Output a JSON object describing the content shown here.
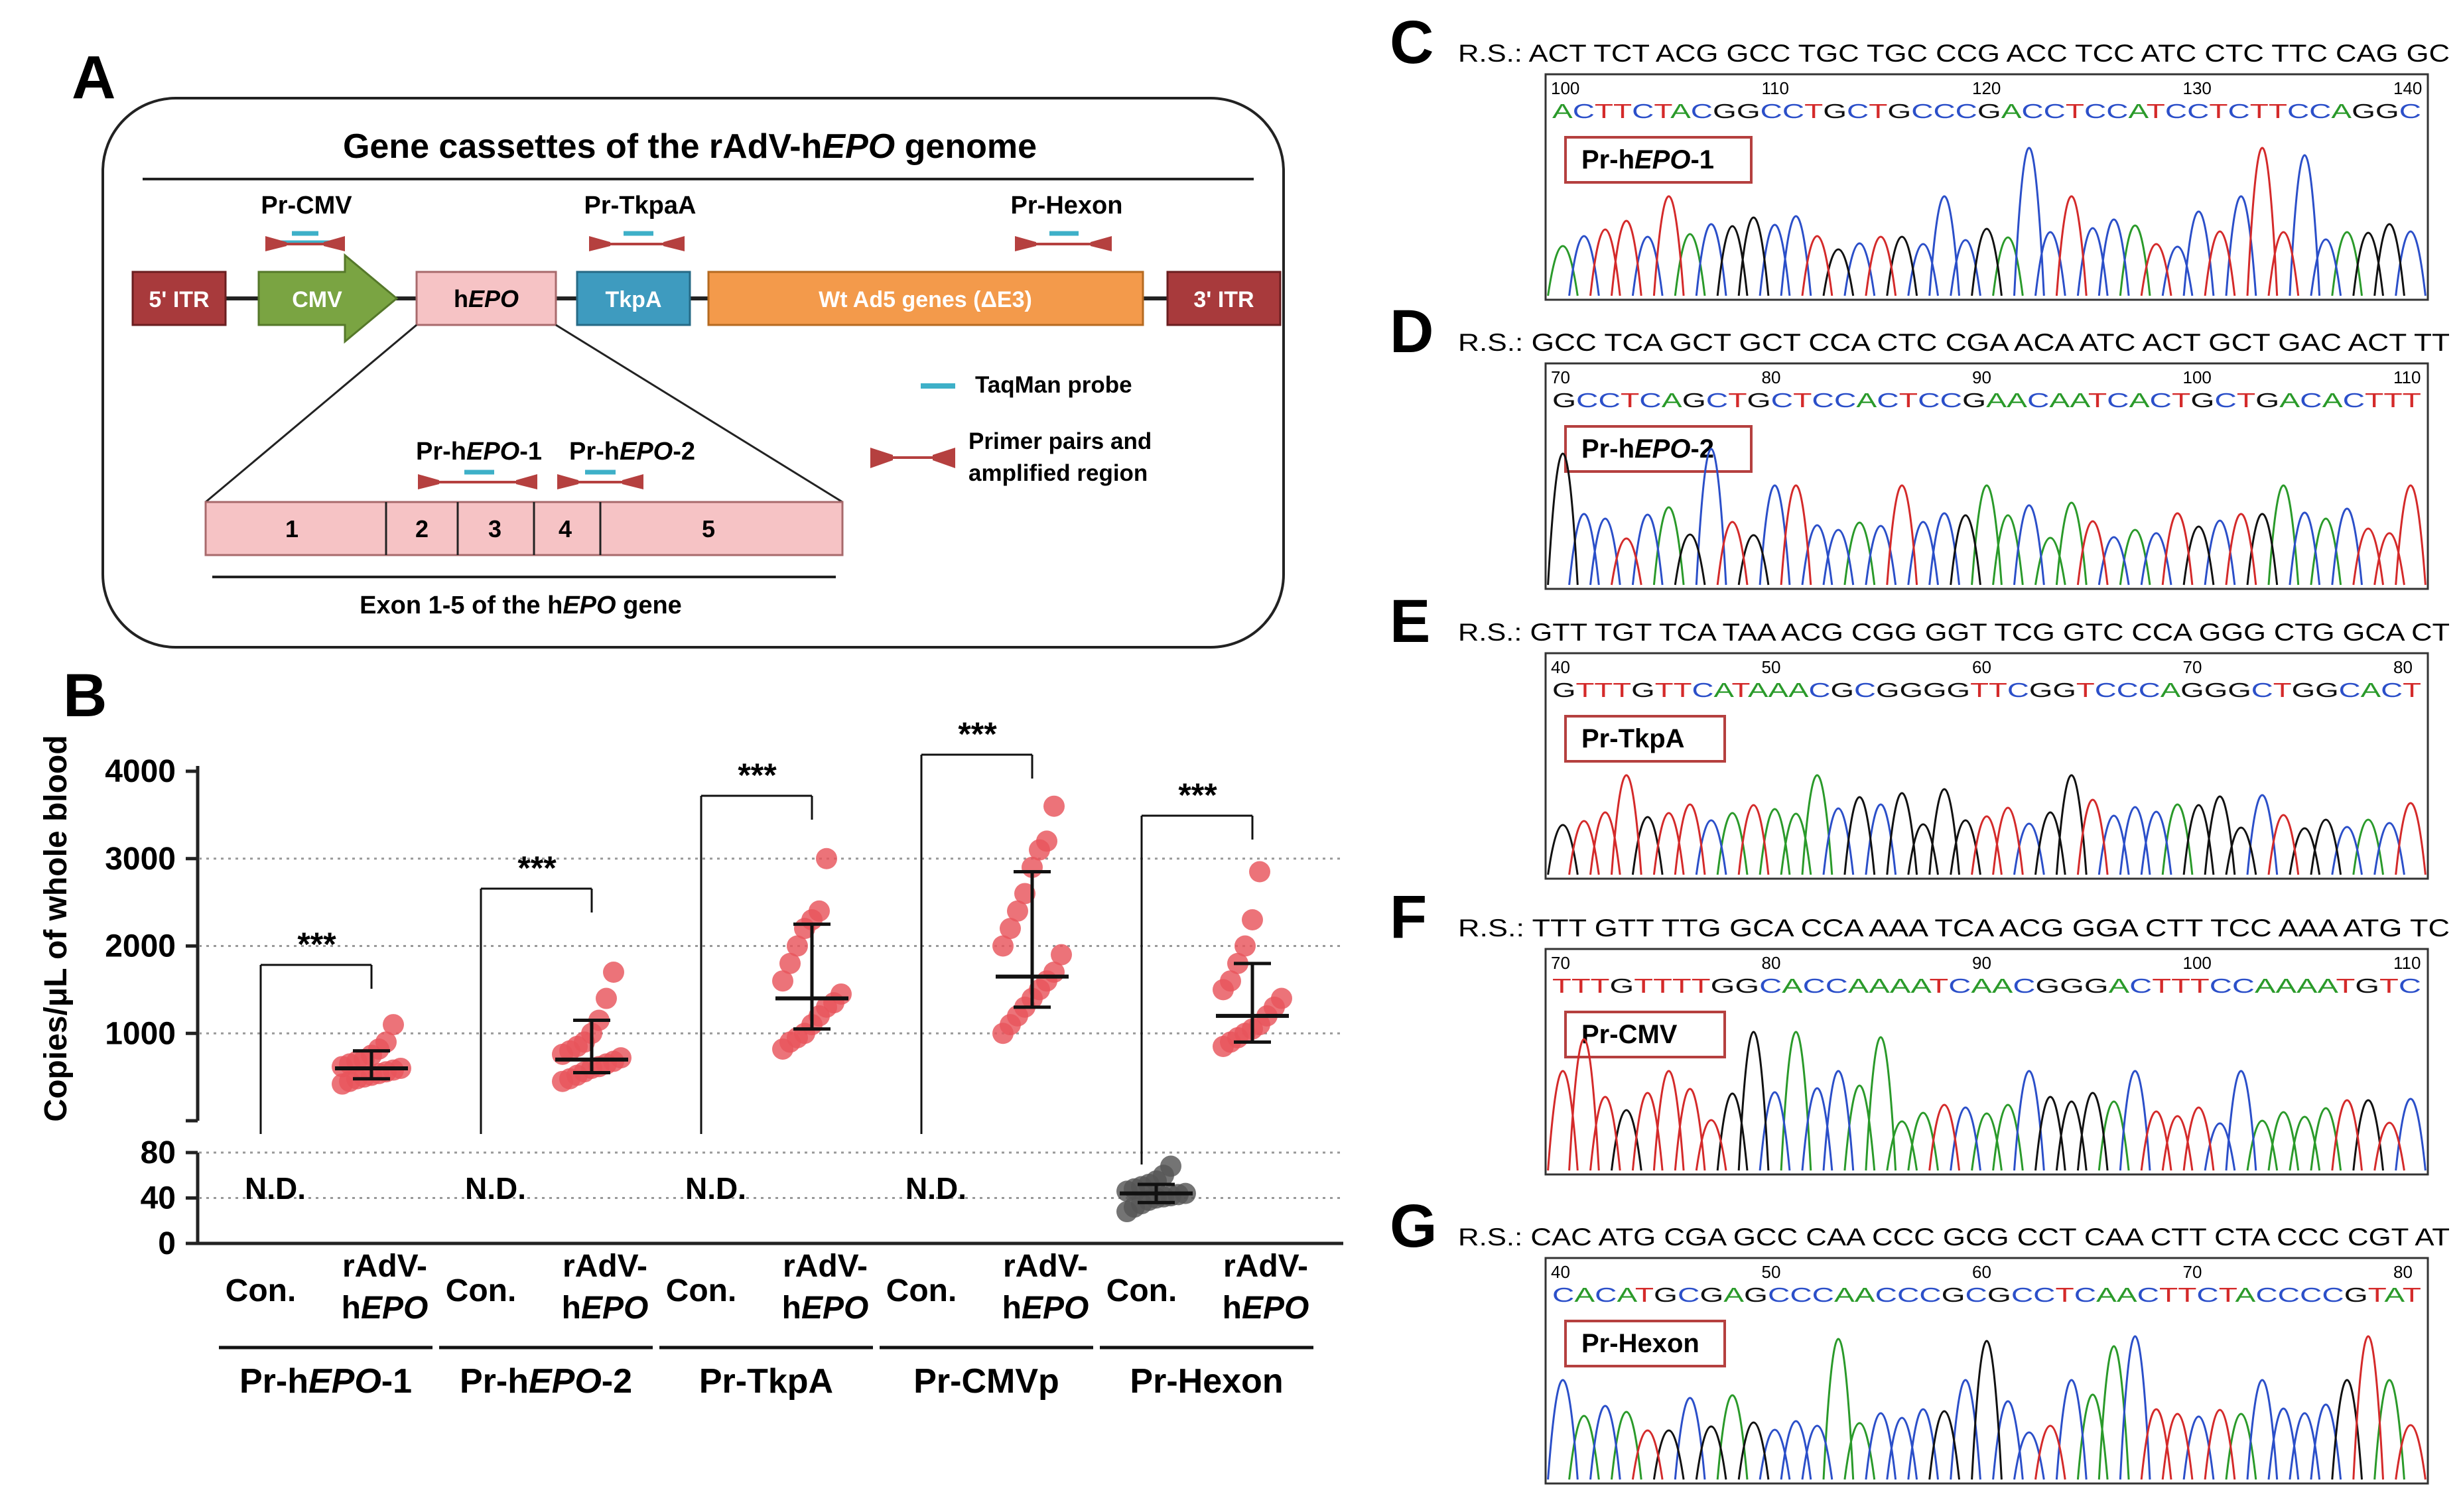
{
  "panel_a": {
    "letter": "A",
    "title_pre": "Gene cassettes of the rAdV-h",
    "title_ital": "EPO",
    "title_post": " genome",
    "primers": {
      "cmv": "Pr-CMV",
      "tkpa": "Pr-TkpaA",
      "hexon": "Pr-Hexon",
      "hepo1": "Pr-hEPO-1",
      "hepo2": "Pr-hEPO-2"
    },
    "boxes": {
      "itr5": "5' ITR",
      "cmv": "CMV",
      "hepo_pre": "h",
      "hepo_ital": "EPO",
      "tkpa": "TkpA",
      "wt": "Wt Ad5 genes (ΔE3)",
      "itr3": "3' ITR"
    },
    "legend": {
      "probe": "TaqMan probe",
      "primer_line1": "Primer pairs and",
      "primer_line2": "amplified region"
    },
    "exons": [
      "1",
      "2",
      "3",
      "4",
      "5"
    ],
    "exon_label_pre": "Exon 1-5 of the h",
    "exon_label_ital": "EPO",
    "exon_label_post": " gene"
  },
  "chart_data": {
    "type": "scatter",
    "panel": "B",
    "ylabel": "Copies/μL of whole blood",
    "y_axis_segments": [
      {
        "range": [
          0,
          80
        ],
        "ticks": [
          0,
          40,
          80
        ]
      },
      {
        "range": [
          0,
          4000
        ],
        "ticks": [
          1000,
          2000,
          3000,
          4000
        ]
      }
    ],
    "grid": "dotted",
    "groups": [
      {
        "name": "Pr-hEPO-1",
        "control": "N.D.",
        "rAdV_hEPO": {
          "mean": 600,
          "sd_low": 480,
          "sd_high": 800,
          "points": [
            420,
            450,
            480,
            500,
            520,
            540,
            560,
            580,
            600,
            620,
            650,
            680,
            700,
            750,
            820,
            900,
            1100
          ]
        },
        "significance": "***"
      },
      {
        "name": "Pr-hEPO-2",
        "control": "N.D.",
        "rAdV_hEPO": {
          "mean": 700,
          "sd_low": 550,
          "sd_high": 1150,
          "points": [
            450,
            480,
            520,
            560,
            600,
            620,
            650,
            680,
            720,
            760,
            800,
            850,
            900,
            1000,
            1150,
            1400,
            1700
          ]
        },
        "significance": "***"
      },
      {
        "name": "Pr-TkpA",
        "control": "N.D.",
        "rAdV_hEPO": {
          "mean": 1400,
          "sd_low": 1050,
          "sd_high": 2250,
          "points": [
            820,
            900,
            950,
            1000,
            1100,
            1200,
            1300,
            1350,
            1450,
            1600,
            1800,
            2000,
            2200,
            2300,
            2400,
            3000
          ]
        },
        "significance": "***"
      },
      {
        "name": "Pr-CMVp",
        "control": "N.D.",
        "rAdV_hEPO": {
          "mean": 1650,
          "sd_low": 1300,
          "sd_high": 2850,
          "points": [
            1000,
            1100,
            1200,
            1300,
            1400,
            1500,
            1600,
            1700,
            1900,
            2000,
            2200,
            2400,
            2600,
            2900,
            3100,
            3200,
            3600
          ]
        },
        "significance": "***"
      },
      {
        "name": "Pr-Hexon",
        "control": {
          "mean": 44,
          "sd_low": 36,
          "sd_high": 52,
          "points": [
            28,
            32,
            35,
            38,
            40,
            41,
            42,
            43,
            44,
            46,
            48,
            50,
            52,
            55,
            60,
            68
          ]
        },
        "rAdV_hEPO": {
          "mean": 1200,
          "sd_low": 900,
          "sd_high": 1800,
          "points": [
            850,
            900,
            950,
            1000,
            1050,
            1100,
            1200,
            1300,
            1400,
            1500,
            1600,
            1800,
            2000,
            2300,
            2850
          ]
        },
        "significance": "***"
      }
    ]
  },
  "panel_b": {
    "letter": "B",
    "nd": "N.D.",
    "con_label": "Con.",
    "radv_line1": "rAdV-",
    "radv_line2_pre": "h",
    "radv_line2_ital": "EPO",
    "sig": "***",
    "group_labels": [
      {
        "pre": "Pr-h",
        "ital": "EPO",
        "post": "-1"
      },
      {
        "pre": "Pr-h",
        "ital": "EPO",
        "post": "-2"
      },
      {
        "pre": "Pr-TkpA",
        "ital": "",
        "post": ""
      },
      {
        "pre": "Pr-CMVp",
        "ital": "",
        "post": ""
      },
      {
        "pre": "Pr-Hexon",
        "ital": "",
        "post": ""
      }
    ],
    "y_ticks_upper": [
      "1000",
      "2000",
      "3000",
      "4000"
    ],
    "y_ticks_lower": [
      "0",
      "40",
      "80"
    ]
  },
  "seq_panels": [
    {
      "letter": "C",
      "rs": "R.S.: ACT TCT ACG GCC TGC TGC CCG ACC TCC ATC CTC TTC CAG GC",
      "positions": [
        "100",
        "110",
        "120",
        "130",
        "140"
      ],
      "bases": "ACTTCTACGGCCTGCTGCCCGACCTCCATCCTCTTCCAGGC",
      "label_pre": "Pr-h",
      "label_ital": "EPO",
      "label_post": "-1"
    },
    {
      "letter": "D",
      "rs": "R.S.: GCC TCA GCT GCT CCA CTC CGA ACA ATC ACT GCT GAC ACT TT",
      "positions": [
        "70",
        "80",
        "90",
        "100",
        "110"
      ],
      "bases": "GCCTCAGCTGCTCCACTCCGAACAATCACTGCTGACACTTT",
      "label_pre": "Pr-h",
      "label_ital": "EPO",
      "label_post": "-2"
    },
    {
      "letter": "E",
      "rs": "R.S.: GTT TGT TCA TAA ACG CGG GGT TCG GTC CCA GGG CTG GCA CT",
      "positions": [
        "40",
        "50",
        "60",
        "70",
        "80"
      ],
      "bases": "GTTTGTTCATAAACGCGGGGTTCGGTCCCAGGGCTGGCACT",
      "label_pre": "Pr-TkpA",
      "label_ital": "",
      "label_post": ""
    },
    {
      "letter": "F",
      "rs": "R.S.: TTT GTT TTG GCA CCA AAA TCA ACG GGA CTT TCC AAA ATG TC",
      "positions": [
        "70",
        "80",
        "90",
        "100",
        "110"
      ],
      "bases": "TTTGTTTTGGCACCAAAATCAACGGGACTTTCCAAAATGTC",
      "label_pre": "Pr-CMV",
      "label_ital": "",
      "label_post": ""
    },
    {
      "letter": "G",
      "rs": "R.S.: CAC ATG CGA GCC CAA CCC GCG CCT CAA CTT CTA CCC CGT AT",
      "positions": [
        "40",
        "50",
        "60",
        "70",
        "80"
      ],
      "bases": "CACATGCGAGCCCAACCCGCGCCTCAACTTCTACCCCGTAT",
      "label_pre": "Pr-Hexon",
      "label_ital": "",
      "label_post": ""
    }
  ],
  "colors": {
    "itr": "#a83a3c",
    "cmv": "#7aa442",
    "hepo": "#f6c3c5",
    "tkpa": "#3e9bbf",
    "wt": "#f39a4b",
    "exon": "#f6c3c5",
    "primer": "#b5403f",
    "probe": "#3eb0c8",
    "dot_red": "#e8545c",
    "dot_gray": "#555555",
    "base_A": "#2a9a2a",
    "base_C": "#2b4fc9",
    "base_G": "#111111",
    "base_T": "#d42a2a"
  }
}
